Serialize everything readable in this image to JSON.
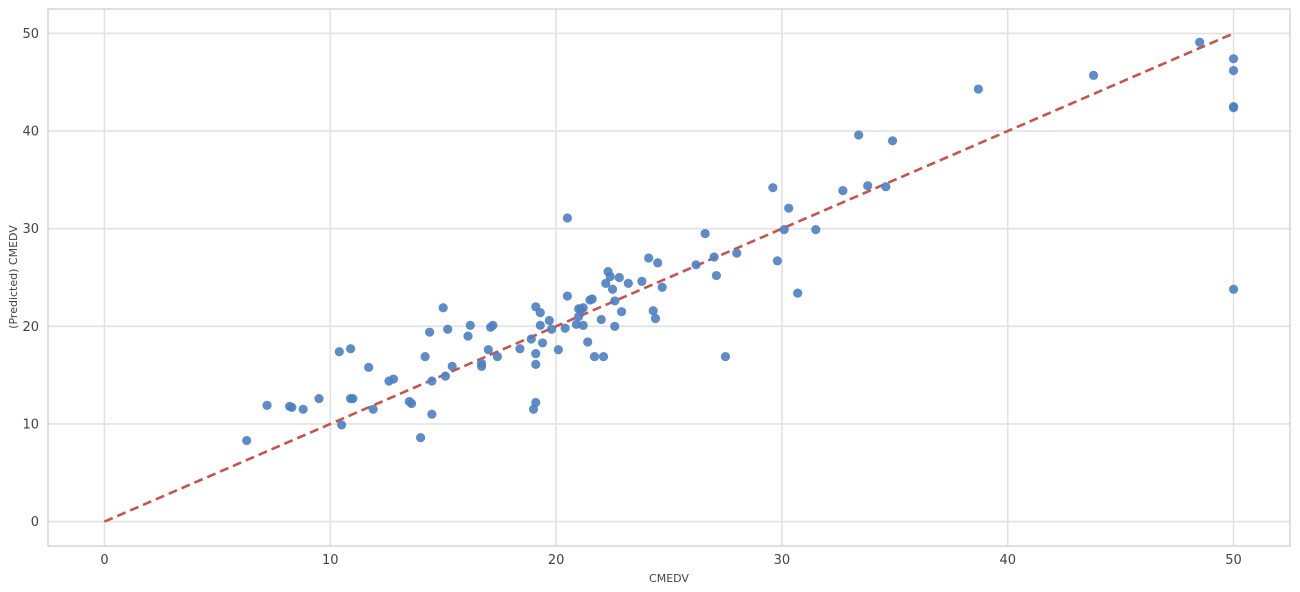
{
  "chart_data": {
    "type": "scatter",
    "title": "",
    "xlabel": "CMEDV",
    "ylabel": "(Predicted) CMEDV",
    "xlim": [
      -2.5,
      52.5
    ],
    "ylim": [
      -2.5,
      52.5
    ],
    "xticks": [
      0,
      10,
      20,
      30,
      40,
      50
    ],
    "yticks": [
      0,
      10,
      20,
      30,
      40,
      50
    ],
    "grid": true,
    "point_color": "#4c7fc3",
    "line_color": "#c9544b",
    "reference_line": {
      "style": "dashed",
      "x": [
        0,
        50
      ],
      "y": [
        0,
        50
      ]
    },
    "series": [
      {
        "points": [
          [
            6.3,
            8.3
          ],
          [
            7.2,
            11.9
          ],
          [
            8.2,
            11.8
          ],
          [
            8.3,
            11.7
          ],
          [
            8.8,
            11.5
          ],
          [
            9.5,
            12.6
          ],
          [
            10.4,
            17.4
          ],
          [
            10.5,
            9.9
          ],
          [
            10.9,
            17.7
          ],
          [
            10.9,
            12.6
          ],
          [
            11.0,
            12.6
          ],
          [
            11.7,
            15.8
          ],
          [
            11.9,
            11.5
          ],
          [
            12.6,
            14.4
          ],
          [
            12.8,
            14.6
          ],
          [
            13.5,
            12.3
          ],
          [
            13.6,
            12.1
          ],
          [
            14.0,
            8.6
          ],
          [
            14.2,
            16.9
          ],
          [
            14.4,
            19.4
          ],
          [
            14.5,
            14.4
          ],
          [
            14.5,
            11.0
          ],
          [
            15.0,
            21.9
          ],
          [
            15.1,
            14.9
          ],
          [
            15.2,
            19.7
          ],
          [
            15.4,
            15.9
          ],
          [
            16.1,
            19.0
          ],
          [
            16.2,
            20.1
          ],
          [
            16.7,
            16.2
          ],
          [
            16.7,
            15.9
          ],
          [
            17.0,
            17.6
          ],
          [
            17.1,
            19.9
          ],
          [
            17.2,
            20.1
          ],
          [
            17.4,
            16.9
          ],
          [
            18.4,
            17.7
          ],
          [
            18.9,
            18.7
          ],
          [
            19.0,
            11.5
          ],
          [
            19.1,
            12.2
          ],
          [
            19.1,
            16.1
          ],
          [
            19.1,
            17.2
          ],
          [
            19.1,
            22.0
          ],
          [
            19.3,
            21.4
          ],
          [
            19.3,
            20.1
          ],
          [
            19.4,
            18.3
          ],
          [
            19.7,
            20.6
          ],
          [
            19.8,
            19.7
          ],
          [
            20.1,
            17.6
          ],
          [
            20.4,
            19.8
          ],
          [
            20.5,
            23.1
          ],
          [
            20.5,
            31.1
          ],
          [
            20.9,
            20.2
          ],
          [
            21.0,
            21.0
          ],
          [
            21.0,
            21.8
          ],
          [
            21.1,
            21.7
          ],
          [
            21.2,
            20.1
          ],
          [
            21.2,
            21.9
          ],
          [
            21.4,
            18.4
          ],
          [
            21.5,
            22.7
          ],
          [
            21.6,
            22.8
          ],
          [
            21.7,
            16.9
          ],
          [
            22.0,
            20.7
          ],
          [
            22.1,
            16.9
          ],
          [
            22.2,
            24.4
          ],
          [
            22.3,
            25.6
          ],
          [
            22.4,
            25.1
          ],
          [
            22.5,
            23.8
          ],
          [
            22.6,
            22.6
          ],
          [
            22.6,
            20.0
          ],
          [
            22.8,
            25.0
          ],
          [
            22.9,
            21.5
          ],
          [
            23.2,
            24.4
          ],
          [
            23.8,
            24.6
          ],
          [
            24.1,
            27.0
          ],
          [
            24.3,
            21.6
          ],
          [
            24.4,
            20.8
          ],
          [
            24.5,
            26.5
          ],
          [
            24.7,
            24.0
          ],
          [
            26.2,
            26.3
          ],
          [
            26.6,
            29.5
          ],
          [
            27.0,
            27.1
          ],
          [
            27.1,
            25.2
          ],
          [
            27.5,
            16.9
          ],
          [
            28.0,
            27.5
          ],
          [
            29.6,
            34.2
          ],
          [
            29.8,
            26.7
          ],
          [
            30.1,
            29.9
          ],
          [
            30.3,
            32.1
          ],
          [
            30.7,
            23.4
          ],
          [
            31.5,
            29.9
          ],
          [
            32.7,
            33.9
          ],
          [
            33.4,
            39.6
          ],
          [
            33.8,
            34.4
          ],
          [
            34.6,
            34.3
          ],
          [
            34.9,
            39.0
          ],
          [
            38.7,
            44.3
          ],
          [
            43.8,
            45.7
          ],
          [
            48.5,
            49.1
          ],
          [
            50.0,
            47.4
          ],
          [
            50.0,
            46.2
          ],
          [
            50.0,
            42.5
          ],
          [
            50.0,
            42.4
          ],
          [
            50.0,
            23.8
          ]
        ]
      }
    ]
  }
}
